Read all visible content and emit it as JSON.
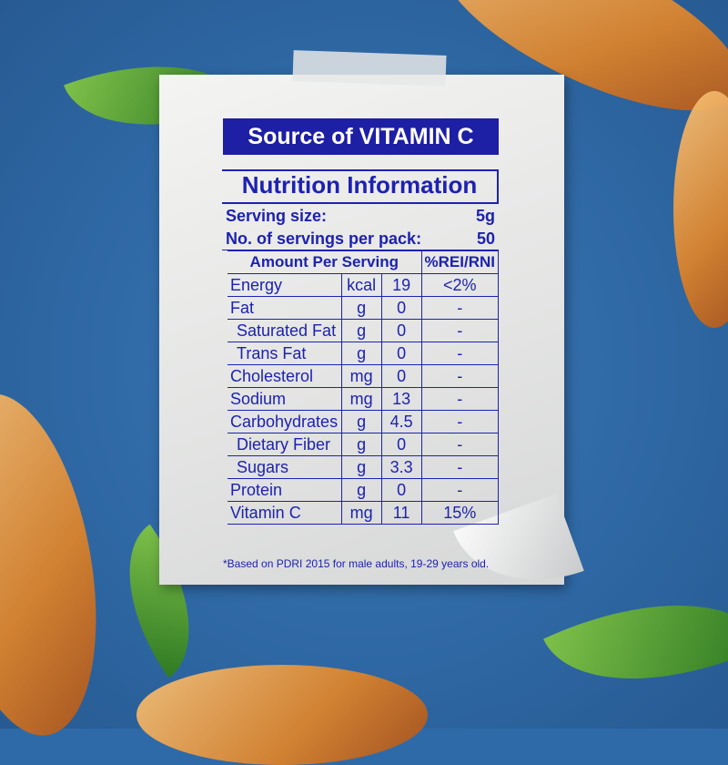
{
  "banner": "Source of VITAMIN C",
  "title": "Nutrition Information",
  "serving_size": {
    "label": "Serving size:",
    "value": "5g"
  },
  "servings_per_pack": {
    "label": "No. of servings per pack:",
    "value": "50"
  },
  "header": {
    "amount": "Amount Per Serving",
    "pct": "%REI/RNI"
  },
  "rows": [
    {
      "name": "Energy",
      "unit": "kcal",
      "value": "19",
      "pct": "<2%"
    },
    {
      "name": "Fat",
      "unit": "g",
      "value": "0",
      "pct": "-"
    },
    {
      "name": "Saturated Fat",
      "unit": "g",
      "value": "0",
      "pct": "-",
      "sub": true
    },
    {
      "name": "Trans Fat",
      "unit": "g",
      "value": "0",
      "pct": "-",
      "sub": true
    },
    {
      "name": "Cholesterol",
      "unit": "mg",
      "value": "0",
      "pct": "-"
    },
    {
      "name": "Sodium",
      "unit": "mg",
      "value": "13",
      "pct": "-"
    },
    {
      "name": "Carbohydrates",
      "unit": "g",
      "value": "4.5",
      "pct": "-"
    },
    {
      "name": "Dietary Fiber",
      "unit": "g",
      "value": "0",
      "pct": "-",
      "sub": true
    },
    {
      "name": "Sugars",
      "unit": "g",
      "value": "3.3",
      "pct": "-",
      "sub": true
    },
    {
      "name": "Protein",
      "unit": "g",
      "value": "0",
      "pct": "-"
    },
    {
      "name": "Vitamin C",
      "unit": "mg",
      "value": "11",
      "pct": "15%"
    }
  ],
  "footnote": "*Based on PDRI 2015 for male adults, 19-29 years old.",
  "colors": {
    "background": "#2f6aa8",
    "label_blue": "#1d22b0",
    "banner": "#1d1fa4"
  }
}
